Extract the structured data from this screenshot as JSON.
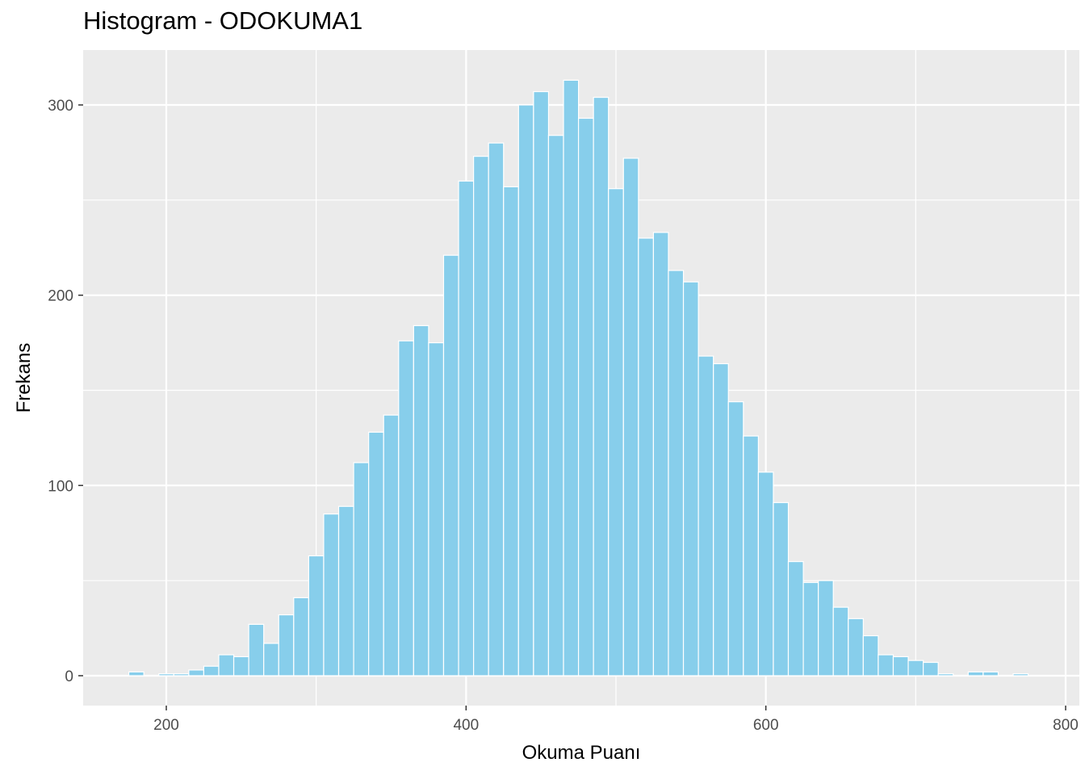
{
  "title": "Histogram - ODOKUMA1",
  "colors": {
    "panel": "#ebebeb",
    "grid": "#ffffff",
    "bar_fill": "#87ceeb",
    "bar_stroke": "#ffffff"
  },
  "chart_data": {
    "type": "bar",
    "subtype": "histogram",
    "title": "Histogram - ODOKUMA1",
    "xlabel": "Okuma Puanı",
    "ylabel": "Frekans",
    "xlim": [
      146,
      804
    ],
    "ylim": [
      0,
      320
    ],
    "x_ticks": [
      200,
      400,
      600,
      800
    ],
    "y_ticks": [
      0,
      100,
      200,
      300
    ],
    "grid": true,
    "bin_width": 10,
    "bin_centers": [
      180,
      190,
      200,
      210,
      220,
      230,
      240,
      250,
      260,
      270,
      280,
      290,
      300,
      310,
      320,
      330,
      340,
      350,
      360,
      370,
      380,
      390,
      400,
      410,
      420,
      430,
      440,
      450,
      460,
      470,
      480,
      490,
      500,
      510,
      520,
      530,
      540,
      550,
      560,
      570,
      580,
      590,
      600,
      610,
      620,
      630,
      640,
      650,
      660,
      670,
      680,
      690,
      700,
      710,
      720,
      730,
      740,
      750,
      760,
      770
    ],
    "values": [
      2,
      0,
      1,
      1,
      3,
      5,
      11,
      10,
      27,
      17,
      32,
      41,
      63,
      85,
      89,
      112,
      128,
      137,
      176,
      184,
      175,
      221,
      260,
      273,
      280,
      257,
      300,
      307,
      284,
      313,
      293,
      304,
      256,
      272,
      230,
      233,
      213,
      207,
      168,
      164,
      144,
      126,
      107,
      91,
      60,
      49,
      50,
      36,
      30,
      21,
      11,
      10,
      8,
      7,
      1,
      0,
      2,
      2,
      0,
      1
    ]
  }
}
